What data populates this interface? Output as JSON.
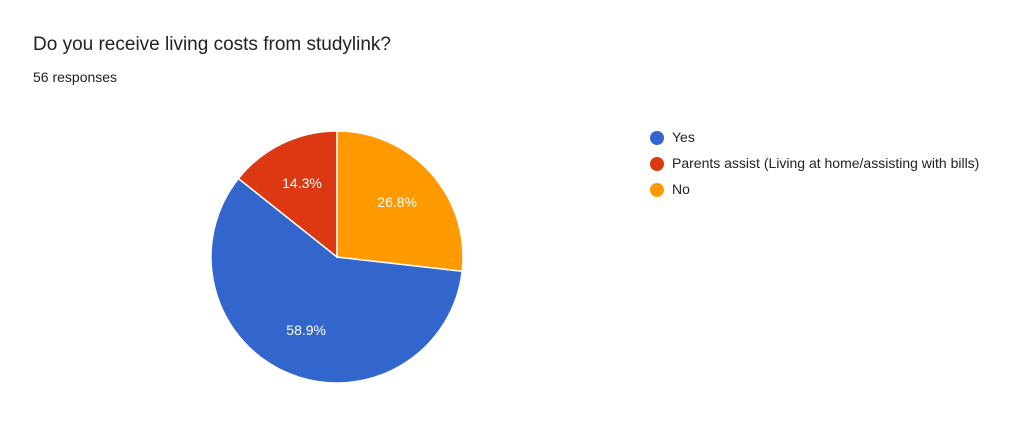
{
  "chart_data": {
    "type": "pie",
    "title": "Do you receive living costs from studylink?",
    "subtitle": "56 responses",
    "categories": [
      "Yes",
      "Parents assist (Living at home/assisting with bills)",
      "No"
    ],
    "values": [
      58.9,
      14.3,
      26.8
    ],
    "value_labels": [
      "58.9%",
      "14.3%",
      "26.8%"
    ],
    "colors": [
      "#3366cc",
      "#dc3912",
      "#ff9900"
    ],
    "legend": "right"
  }
}
